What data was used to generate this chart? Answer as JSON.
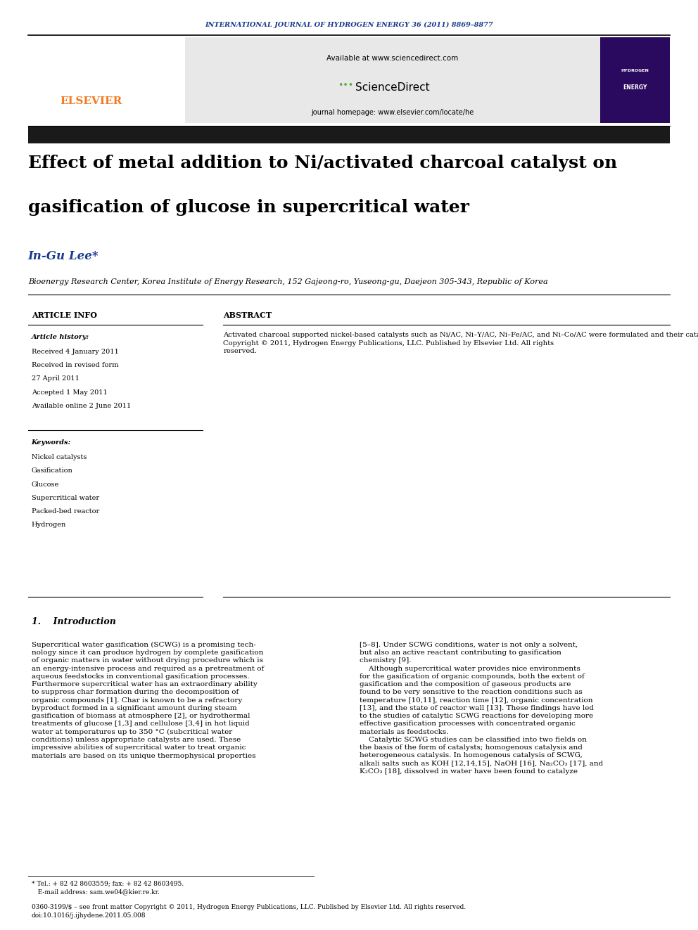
{
  "page_width": 9.92,
  "page_height": 13.23,
  "bg_color": "#ffffff",
  "journal_header": "INTERNATIONAL JOURNAL OF HYDROGEN ENERGY 36 (2011) 8869–8877",
  "journal_header_color": "#1a3a8c",
  "available_text": "Available at www.sciencedirect.com",
  "journal_homepage": "journal homepage: www.elsevier.com/locate/he",
  "sciencedirect_color": "#5aaa3c",
  "elsevier_color": "#f47920",
  "title_line1": "Effect of metal addition to Ni/activated charcoal catalyst on",
  "title_line2": "gasification of glucose in supercritical water",
  "title_fontsize": 18,
  "title_color": "#000000",
  "author": "In-Gu Lee*",
  "author_color": "#1a3a8c",
  "author_fontsize": 12,
  "affiliation": "Bioenergy Research Center, Korea Institute of Energy Research, 152 Gajeong-ro, Yuseong-gu, Daejeon 305-343, Republic of Korea",
  "affiliation_fontsize": 8,
  "article_info_title": "ARTICLE INFO",
  "abstract_title": "ABSTRACT",
  "section_title_fontsize": 8,
  "article_history_label": "Article history:",
  "history_items": [
    "Received 4 January 2011",
    "Received in revised form",
    "27 April 2011",
    "Accepted 1 May 2011",
    "Available online 2 June 2011"
  ],
  "keywords_label": "Keywords:",
  "keywords": [
    "Nickel catalysts",
    "Gasification",
    "Glucose",
    "Supercritical water",
    "Packed-bed reactor",
    "Hydrogen"
  ],
  "abstract_text": "Activated charcoal supported nickel-based catalysts such as Ni/AC, Ni–Y/AC, Ni–Fe/AC, and Ni–Co/AC were formulated and their catalytic activity for the gasification of glucose in supercritical water were investigated using a packed-bed reactor at 650 °C, 28 MPa. A set of glucose gasification experiments was also carried out without catalyst and with AC to provide baseline data. Loading of small amounts of Y to the Ni/AC catalyst appeared to increase both the extent of gasification and hydrogen yield while loading of Fe or Co metal to the Ni/AC catalyst did not give any positive effect on the gasification results. Effect of catalyst composition, temperature, reactant concentration, and reactor residence time on the glucose gasification with the Ni–Y/AC catalyst was examined. Catalyst analysis indi-cates that adding of Y into the Ni/AC catalyst inhibited carbon formation to a great extent, thereby maintaining catalytic activity of the Ni metal for H₂ formation reactions.\nCopyright © 2011, Hydrogen Energy Publications, LLC. Published by Elsevier Ltd. All rights\nreserved.",
  "intro_section": "1.    Introduction",
  "intro_text_left": "Supercritical water gasification (SCWG) is a promising tech-\nnology since it can produce hydrogen by complete gasification\nof organic matters in water without drying procedure which is\nan energy-intensive process and required as a pretreatment of\naqueous feedstocks in conventional gasification processes.\nFurthermore supercritical water has an extraordinary ability\nto suppress char formation during the decomposition of\norganic compounds [1]. Char is known to be a refractory\nbyproduct formed in a significant amount during steam\ngasification of biomass at atmosphere [2], or hydrothermal\ntreatments of glucose [1,3] and cellulose [3,4] in hot liquid\nwater at temperatures up to 350 °C (subcritical water\nconditions) unless appropriate catalysts are used. These\nimpressive abilities of supercritical water to treat organic\nmaterials are based on its unique thermophysical properties",
  "intro_text_right": "[5–8]. Under SCWG conditions, water is not only a solvent,\nbut also an active reactant contributing to gasification\nchemistry [9].\n    Although supercritical water provides nice environments\nfor the gasification of organic compounds, both the extent of\ngasification and the composition of gaseous products are\nfound to be very sensitive to the reaction conditions such as\ntemperature [10,11], reaction time [12], organic concentration\n[13], and the state of reactor wall [13]. These findings have led\nto the studies of catalytic SCWG reactions for developing more\neffective gasification processes with concentrated organic\nmaterials as feedstocks.\n    Catalytic SCWG studies can be classified into two fields on\nthe basis of the form of catalysts; homogenous catalysis and\nheterogeneous catalysis. In homogenous catalysis of SCWG,\nalkali salts such as KOH [12,14,15], NaOH [16], Na₂CO₃ [17], and\nK₂CO₃ [18], dissolved in water have been found to catalyze",
  "footer_note": "* Tel.: + 82 42 8603559; fax: + 82 42 8603495.\n   E-mail address: sam.we04@kier.re.kr.",
  "footer_copyright": "0360-3199/$ – see front matter Copyright © 2011, Hydrogen Energy Publications, LLC. Published by Elsevier Ltd. All rights reserved.\ndoi:10.1016/j.ijhydene.2011.05.008",
  "black_bar_color": "#1a1a1a",
  "header_bg_color": "#e8e8e8",
  "intro_fontsize": 7.5,
  "body_fontsize": 7.5
}
